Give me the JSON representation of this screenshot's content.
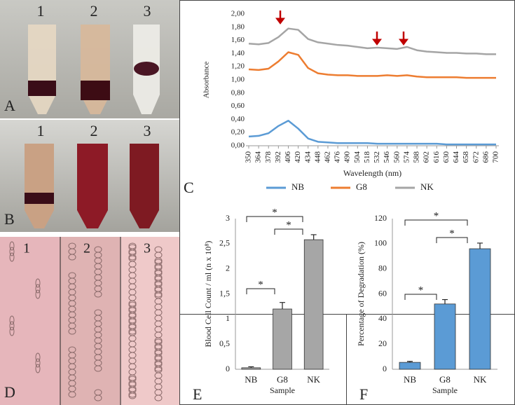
{
  "photos": [
    {
      "label": "A",
      "numbers": [
        "1",
        "2",
        "3"
      ]
    },
    {
      "label": "B",
      "numbers": [
        "1",
        "2",
        "3"
      ]
    },
    {
      "label": "D",
      "numbers": [
        "1",
        "2",
        "3"
      ]
    }
  ],
  "chart_data": [
    {
      "type": "line",
      "panel": "C",
      "y_label": "Absorbance",
      "x_label": "Wavelength (nm)",
      "x": [
        350,
        364,
        378,
        392,
        406,
        420,
        434,
        448,
        462,
        476,
        490,
        504,
        518,
        532,
        546,
        560,
        574,
        588,
        602,
        616,
        630,
        644,
        658,
        672,
        686,
        700
      ],
      "xlim": [
        350,
        700
      ],
      "xticks": [
        350,
        364,
        378,
        392,
        406,
        420,
        434,
        448,
        462,
        476,
        490,
        504,
        518,
        532,
        546,
        560,
        574,
        588,
        602,
        616,
        630,
        644,
        658,
        672,
        686,
        700
      ],
      "ylim": [
        0,
        2
      ],
      "yticks": [
        {
          "value": 0,
          "label": "0,00"
        },
        {
          "value": 0.2,
          "label": "0,20"
        },
        {
          "value": 0.4,
          "label": "0,40"
        },
        {
          "value": 0.6,
          "label": "0,60"
        },
        {
          "value": 0.8,
          "label": "0,80"
        },
        {
          "value": 1,
          "label": "1,00"
        },
        {
          "value": 1.2,
          "label": "1,20"
        },
        {
          "value": 1.4,
          "label": "1,40"
        },
        {
          "value": 1.6,
          "label": "1,60"
        },
        {
          "value": 1.8,
          "label": "1,80"
        },
        {
          "value": 2,
          "label": "2,00"
        }
      ],
      "grid": false,
      "legend": "bottom",
      "series": [
        {
          "name": "NB",
          "color": "#5b9bd5",
          "values": [
            0.14,
            0.15,
            0.19,
            0.3,
            0.38,
            0.26,
            0.11,
            0.06,
            0.05,
            0.04,
            0.04,
            0.04,
            0.04,
            0.03,
            0.03,
            0.03,
            0.03,
            0.03,
            0.03,
            0.03,
            0.02,
            0.02,
            0.02,
            0.02,
            0.02,
            0.02
          ]
        },
        {
          "name": "G8",
          "color": "#ed7d31",
          "values": [
            1.16,
            1.15,
            1.17,
            1.28,
            1.42,
            1.38,
            1.18,
            1.1,
            1.08,
            1.07,
            1.07,
            1.06,
            1.06,
            1.06,
            1.07,
            1.06,
            1.07,
            1.05,
            1.04,
            1.04,
            1.04,
            1.04,
            1.03,
            1.03,
            1.03,
            1.03
          ]
        },
        {
          "name": "NK",
          "color": "#a5a5a5",
          "values": [
            1.55,
            1.54,
            1.56,
            1.65,
            1.78,
            1.76,
            1.62,
            1.57,
            1.55,
            1.53,
            1.52,
            1.5,
            1.48,
            1.49,
            1.48,
            1.47,
            1.5,
            1.45,
            1.43,
            1.42,
            1.41,
            1.41,
            1.4,
            1.4,
            1.39,
            1.39
          ]
        }
      ]
    },
    {
      "type": "bar",
      "panel": "E",
      "y_label": "Blood Cell Count / ml (n x 10⁸)",
      "x_label": "Sample",
      "categories": [
        "NB",
        "G8",
        "NK"
      ],
      "values": [
        0.03,
        1.2,
        2.58
      ],
      "errors": [
        0.02,
        0.13,
        0.1
      ],
      "color": "#a6a6a6",
      "ylim": [
        0,
        3
      ],
      "yticks": [
        0,
        {
          "value": 0.5,
          "label": "0,5"
        },
        1,
        {
          "value": 1.5,
          "label": "1,5"
        },
        2,
        {
          "value": 2.5,
          "label": "2,5"
        },
        3
      ],
      "significance": [
        "*",
        "*",
        "*"
      ]
    },
    {
      "type": "bar",
      "panel": "F",
      "y_label": "Percentage of Degradation (%)",
      "x_label": "Sample",
      "categories": [
        "NB",
        "G8",
        "NK"
      ],
      "values": [
        5.5,
        52,
        96
      ],
      "errors": [
        0.8,
        3.5,
        4.5
      ],
      "color": "#5b9bd5",
      "ylim": [
        0,
        120
      ],
      "yticks": [
        0,
        20,
        40,
        60,
        80,
        100,
        120
      ],
      "significance": [
        "*",
        "*",
        "*"
      ]
    }
  ]
}
